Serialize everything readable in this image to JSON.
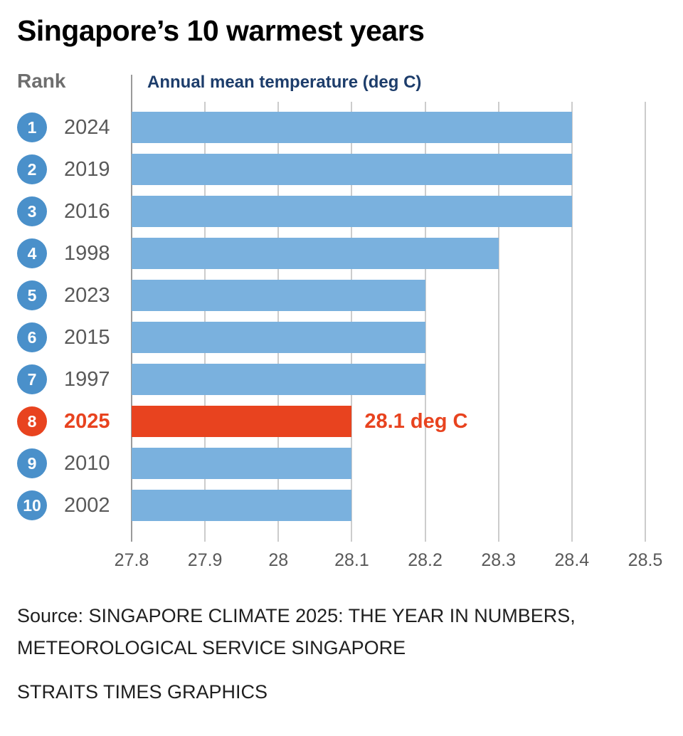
{
  "title": "Singapore’s 10 warmest years",
  "chart_data": {
    "type": "bar",
    "orientation": "horizontal",
    "rank_label": "Rank",
    "axis_title": "Annual mean temperature (deg C)",
    "xmin": 27.8,
    "xmax": 28.5,
    "grid": true,
    "ticks": [
      {
        "value": 27.8,
        "label": "27.8"
      },
      {
        "value": 27.9,
        "label": "27.9"
      },
      {
        "value": 28.0,
        "label": "28"
      },
      {
        "value": 28.1,
        "label": "28.1"
      },
      {
        "value": 28.2,
        "label": "28.2"
      },
      {
        "value": 28.3,
        "label": "28.3"
      },
      {
        "value": 28.4,
        "label": "28.4"
      },
      {
        "value": 28.5,
        "label": "28.5"
      }
    ],
    "rows": [
      {
        "rank": "1",
        "year": "2024",
        "value": 28.4,
        "highlight": false
      },
      {
        "rank": "2",
        "year": "2019",
        "value": 28.4,
        "highlight": false
      },
      {
        "rank": "3",
        "year": "2016",
        "value": 28.4,
        "highlight": false
      },
      {
        "rank": "4",
        "year": "1998",
        "value": 28.3,
        "highlight": false
      },
      {
        "rank": "5",
        "year": "2023",
        "value": 28.2,
        "highlight": false
      },
      {
        "rank": "6",
        "year": "2015",
        "value": 28.2,
        "highlight": false
      },
      {
        "rank": "7",
        "year": "1997",
        "value": 28.2,
        "highlight": false
      },
      {
        "rank": "8",
        "year": "2025",
        "value": 28.1,
        "highlight": true,
        "annotation": "28.1 deg C"
      },
      {
        "rank": "9",
        "year": "2010",
        "value": 28.1,
        "highlight": false
      },
      {
        "rank": "10",
        "year": "2002",
        "value": 28.1,
        "highlight": false
      }
    ]
  },
  "colors": {
    "bar_blue": "#7ab1de",
    "badge_blue": "#4a90ca",
    "highlight_red": "#e8431f",
    "axis_title_text": "#1d3d6b",
    "gridline": "#cccccc",
    "axis_line": "#9a9a9a",
    "tick_text": "#595959"
  },
  "footer": {
    "source_lines": [
      "Source: SINGAPORE CLIMATE 2025: THE YEAR IN NUMBERS,",
      "METEOROLOGICAL SERVICE SINGAPORE"
    ],
    "credit": "STRAITS TIMES GRAPHICS"
  }
}
